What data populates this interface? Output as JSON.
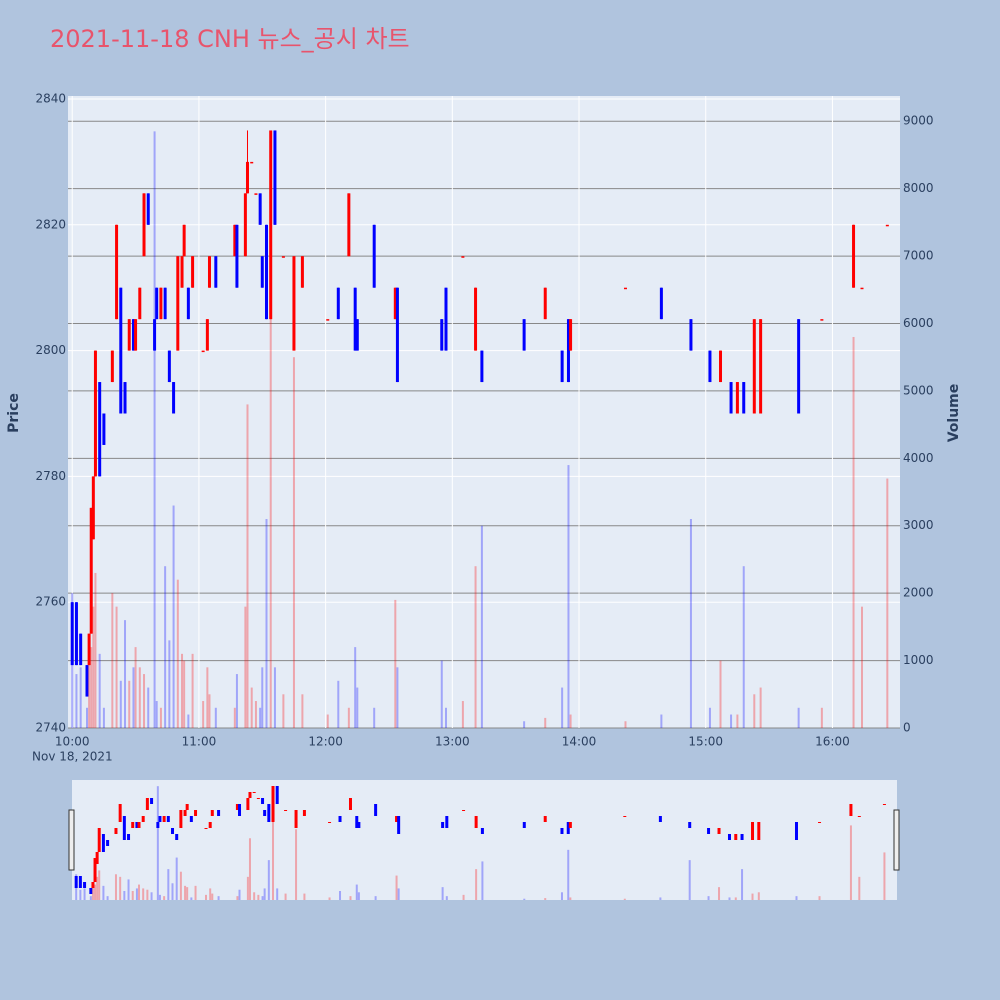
{
  "chart_data": {
    "type": "candlestick",
    "title": "2021-11-18 CNH 뉴스_공시 차트",
    "y_label": "Price",
    "y2_label": "Volume",
    "x_date_label": "Nov 18, 2021",
    "increasing_color": "#ff0000",
    "decreasing_color": "#0000ff",
    "grid": true,
    "range_slider": true,
    "xlim": [
      "2021-11-18 09:58",
      "2021-11-18 16:32"
    ],
    "xticks": [
      {
        "value": "2021-11-18 10:00",
        "label": "10:00"
      },
      {
        "value": "2021-11-18 11:00",
        "label": "11:00"
      },
      {
        "value": "2021-11-18 12:00",
        "label": "12:00"
      },
      {
        "value": "2021-11-18 13:00",
        "label": "13:00"
      },
      {
        "value": "2021-11-18 14:00",
        "label": "14:00"
      },
      {
        "value": "2021-11-18 15:00",
        "label": "15:00"
      },
      {
        "value": "2021-11-18 16:00",
        "label": "16:00"
      }
    ],
    "ylim": [
      2740,
      2840
    ],
    "yticks": [
      2740,
      2760,
      2780,
      2800,
      2820,
      2840
    ],
    "y2lim": [
      0,
      9330
    ],
    "y2ticks": [
      0,
      1000,
      2000,
      3000,
      4000,
      5000,
      6000,
      7000,
      8000,
      9000
    ],
    "x": [
      "2021-11-18 10:00",
      "2021-11-18 10:02",
      "2021-11-18 10:04",
      "2021-11-18 10:07",
      "2021-11-18 10:08",
      "2021-11-18 10:09",
      "2021-11-18 10:10",
      "2021-11-18 10:11",
      "2021-11-18 10:13",
      "2021-11-18 10:15",
      "2021-11-18 10:19",
      "2021-11-18 10:21",
      "2021-11-18 10:23",
      "2021-11-18 10:25",
      "2021-11-18 10:27",
      "2021-11-18 10:29",
      "2021-11-18 10:30",
      "2021-11-18 10:32",
      "2021-11-18 10:34",
      "2021-11-18 10:36",
      "2021-11-18 10:39",
      "2021-11-18 10:40",
      "2021-11-18 10:42",
      "2021-11-18 10:44",
      "2021-11-18 10:46",
      "2021-11-18 10:48",
      "2021-11-18 10:50",
      "2021-11-18 10:52",
      "2021-11-18 10:53",
      "2021-11-18 10:55",
      "2021-11-18 10:57",
      "2021-11-18 11:02",
      "2021-11-18 11:04",
      "2021-11-18 11:05",
      "2021-11-18 11:08",
      "2021-11-18 11:17",
      "2021-11-18 11:18",
      "2021-11-18 11:22",
      "2021-11-18 11:23",
      "2021-11-18 11:25",
      "2021-11-18 11:27",
      "2021-11-18 11:29",
      "2021-11-18 11:30",
      "2021-11-18 11:32",
      "2021-11-18 11:34",
      "2021-11-18 11:36",
      "2021-11-18 11:40",
      "2021-11-18 11:45",
      "2021-11-18 11:49",
      "2021-11-18 12:01",
      "2021-11-18 12:06",
      "2021-11-18 12:11",
      "2021-11-18 12:14",
      "2021-11-18 12:15",
      "2021-11-18 12:23",
      "2021-11-18 12:33",
      "2021-11-18 12:34",
      "2021-11-18 12:55",
      "2021-11-18 12:57",
      "2021-11-18 13:05",
      "2021-11-18 13:11",
      "2021-11-18 13:14",
      "2021-11-18 13:34",
      "2021-11-18 13:44",
      "2021-11-18 13:52",
      "2021-11-18 13:55",
      "2021-11-18 13:56",
      "2021-11-18 14:22",
      "2021-11-18 14:39",
      "2021-11-18 14:53",
      "2021-11-18 15:02",
      "2021-11-18 15:07",
      "2021-11-18 15:12",
      "2021-11-18 15:15",
      "2021-11-18 15:18",
      "2021-11-18 15:23",
      "2021-11-18 15:26",
      "2021-11-18 15:44",
      "2021-11-18 15:55",
      "2021-11-18 16:10",
      "2021-11-18 16:14",
      "2021-11-18 16:26"
    ],
    "open": [
      2760,
      2760,
      2755,
      2750,
      2750,
      2755,
      2770,
      2780,
      2795,
      2790,
      2795,
      2805,
      2810,
      2795,
      2800,
      2805,
      2800,
      2805,
      2815,
      2825,
      2805,
      2810,
      2805,
      2810,
      2800,
      2795,
      2800,
      2810,
      2815,
      2810,
      2810,
      2800,
      2800,
      2810,
      2815,
      2815,
      2820,
      2815,
      2825,
      2830,
      2825,
      2825,
      2815,
      2820,
      2805,
      2835,
      2815,
      2800,
      2810,
      2805,
      2810,
      2815,
      2810,
      2805,
      2820,
      2805,
      2810,
      2805,
      2810,
      2815,
      2800,
      2800,
      2805,
      2805,
      2800,
      2805,
      2800,
      2810,
      2810,
      2805,
      2800,
      2795,
      2795,
      2790,
      2795,
      2790,
      2790,
      2805,
      2805,
      2810,
      2810,
      2820
    ],
    "high": [
      2760,
      2760,
      2755,
      2750,
      2755,
      2775,
      2780,
      2800,
      2795,
      2790,
      2800,
      2820,
      2810,
      2795,
      2805,
      2805,
      2805,
      2810,
      2825,
      2825,
      2805,
      2810,
      2810,
      2810,
      2800,
      2795,
      2815,
      2815,
      2820,
      2810,
      2815,
      2800,
      2805,
      2815,
      2815,
      2820,
      2820,
      2825,
      2835,
      2830,
      2825,
      2825,
      2815,
      2820,
      2835,
      2835,
      2815,
      2815,
      2815,
      2805,
      2810,
      2825,
      2810,
      2805,
      2820,
      2810,
      2810,
      2805,
      2810,
      2815,
      2810,
      2800,
      2805,
      2810,
      2800,
      2805,
      2805,
      2810,
      2810,
      2805,
      2800,
      2800,
      2795,
      2795,
      2795,
      2805,
      2805,
      2805,
      2805,
      2820,
      2810,
      2820
    ],
    "low": [
      2750,
      2750,
      2750,
      2745,
      2750,
      2755,
      2770,
      2780,
      2780,
      2785,
      2795,
      2805,
      2790,
      2790,
      2800,
      2800,
      2800,
      2805,
      2815,
      2820,
      2800,
      2805,
      2805,
      2805,
      2795,
      2790,
      2800,
      2810,
      2815,
      2805,
      2810,
      2800,
      2800,
      2810,
      2810,
      2815,
      2810,
      2815,
      2825,
      2830,
      2825,
      2820,
      2810,
      2805,
      2805,
      2820,
      2815,
      2800,
      2810,
      2805,
      2805,
      2815,
      2800,
      2800,
      2810,
      2805,
      2795,
      2800,
      2800,
      2815,
      2800,
      2795,
      2800,
      2805,
      2795,
      2795,
      2800,
      2810,
      2805,
      2800,
      2795,
      2795,
      2790,
      2790,
      2790,
      2790,
      2790,
      2790,
      2805,
      2810,
      2810,
      2820
    ],
    "close": [
      2750,
      2750,
      2750,
      2745,
      2755,
      2775,
      2780,
      2800,
      2780,
      2785,
      2800,
      2820,
      2790,
      2790,
      2805,
      2800,
      2805,
      2810,
      2825,
      2820,
      2800,
      2805,
      2810,
      2805,
      2795,
      2790,
      2815,
      2815,
      2820,
      2805,
      2815,
      2800,
      2805,
      2815,
      2810,
      2820,
      2810,
      2825,
      2830,
      2830,
      2825,
      2820,
      2810,
      2805,
      2835,
      2820,
      2815,
      2815,
      2815,
      2805,
      2805,
      2825,
      2800,
      2800,
      2810,
      2810,
      2795,
      2800,
      2800,
      2815,
      2810,
      2795,
      2800,
      2810,
      2795,
      2795,
      2805,
      2810,
      2805,
      2800,
      2795,
      2800,
      2790,
      2795,
      2790,
      2805,
      2805,
      2790,
      2805,
      2820,
      2810,
      2820
    ],
    "volume": [
      2000,
      800,
      900,
      300,
      1000,
      1200,
      1800,
      2300,
      1100,
      300,
      2000,
      1800,
      700,
      1600,
      700,
      900,
      1200,
      900,
      800,
      600,
      8850,
      400,
      300,
      2400,
      1300,
      3300,
      2200,
      1100,
      1000,
      200,
      1100,
      400,
      900,
      500,
      300,
      300,
      800,
      1800,
      4800,
      600,
      400,
      300,
      900,
      3100,
      8200,
      900,
      500,
      5500,
      500,
      200,
      700,
      300,
      1200,
      600,
      300,
      1900,
      900,
      1000,
      300,
      400,
      2400,
      3000,
      100,
      150,
      600,
      3900,
      200,
      100,
      200,
      3100,
      300,
      1000,
      200,
      200,
      2400,
      500,
      600,
      300,
      300,
      5800,
      1800,
      3700
    ]
  }
}
